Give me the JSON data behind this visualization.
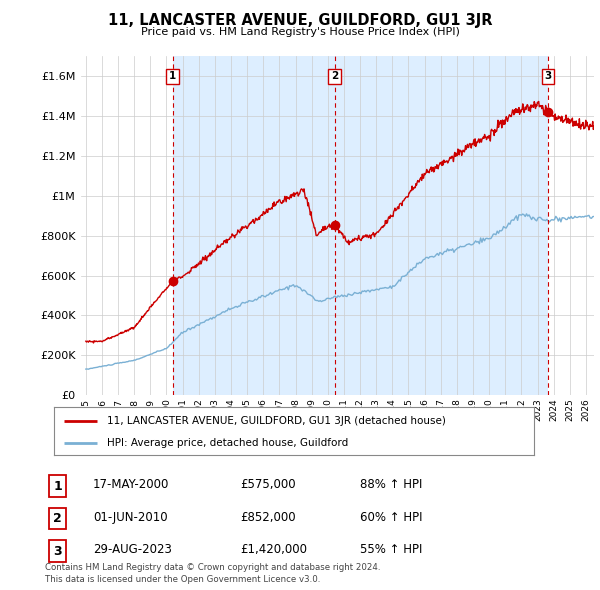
{
  "title": "11, LANCASTER AVENUE, GUILDFORD, GU1 3JR",
  "subtitle": "Price paid vs. HM Land Registry's House Price Index (HPI)",
  "ylim": [
    0,
    1700000
  ],
  "yticks": [
    0,
    200000,
    400000,
    600000,
    800000,
    1000000,
    1200000,
    1400000,
    1600000
  ],
  "ytick_labels": [
    "£0",
    "£200K",
    "£400K",
    "£600K",
    "£800K",
    "£1M",
    "£1.2M",
    "£1.4M",
    "£1.6M"
  ],
  "xmin": 1994.7,
  "xmax": 2026.5,
  "sale_color": "#cc0000",
  "hpi_color": "#7ab0d4",
  "vline_color": "#cc0000",
  "grid_color": "#cccccc",
  "bg_color": "#ffffff",
  "shade_color": "#ddeeff",
  "legend_entries": [
    "11, LANCASTER AVENUE, GUILDFORD, GU1 3JR (detached house)",
    "HPI: Average price, detached house, Guildford"
  ],
  "transactions": [
    {
      "num": 1,
      "date": "17-MAY-2000",
      "price": 575000,
      "pct": "88%",
      "x": 2000.38
    },
    {
      "num": 2,
      "date": "01-JUN-2010",
      "price": 852000,
      "pct": "60%",
      "x": 2010.42
    },
    {
      "num": 3,
      "date": "29-AUG-2023",
      "price": 1420000,
      "pct": "55%",
      "x": 2023.66
    }
  ],
  "footer_line1": "Contains HM Land Registry data © Crown copyright and database right 2024.",
  "footer_line2": "This data is licensed under the Open Government Licence v3.0."
}
